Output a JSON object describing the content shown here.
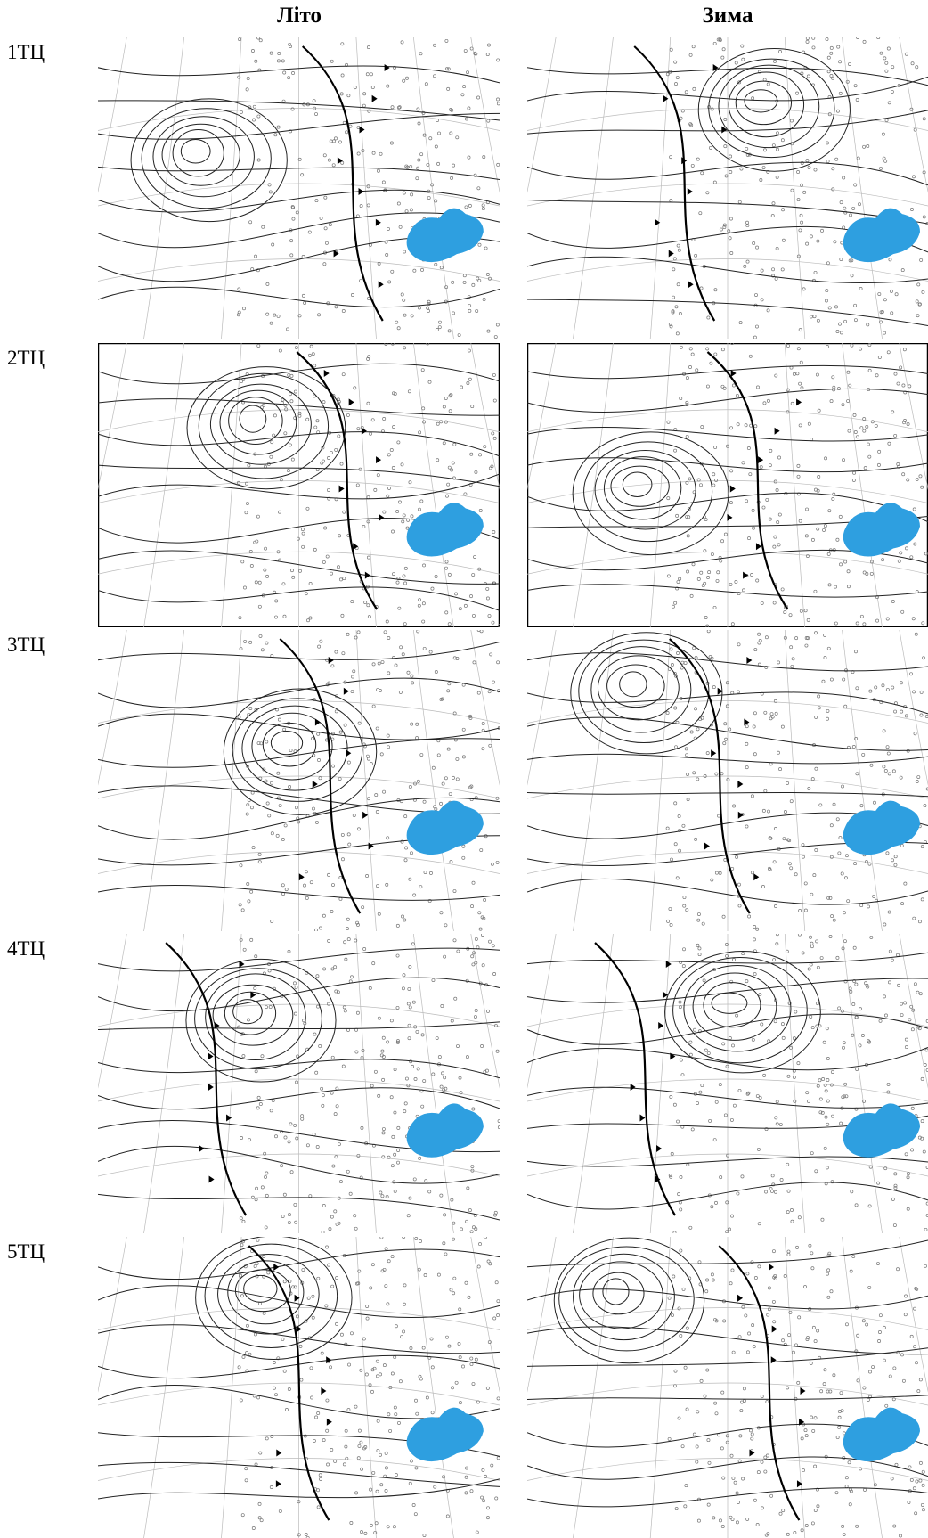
{
  "headers": [
    "Літо",
    "Зима"
  ],
  "row_labels": [
    "1ТЦ",
    "2ТЦ",
    "3ТЦ",
    "4ТЦ",
    "5ТЦ"
  ]
}
